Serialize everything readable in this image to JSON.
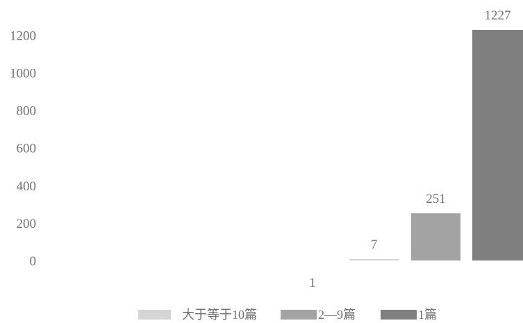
{
  "chart_data": {
    "type": "bar",
    "categories": [
      "1"
    ],
    "series": [
      {
        "name": "大于等于10篇",
        "values": [
          7
        ],
        "color": "#d4d4d4"
      },
      {
        "name": "2—9篇",
        "values": [
          251
        ],
        "color": "#a3a3a3"
      },
      {
        "name": "1篇",
        "values": [
          1227
        ],
        "color": "#7f7f7f"
      }
    ],
    "yticks": [
      0,
      200,
      400,
      600,
      800,
      1000,
      1200
    ],
    "ylim": [
      0,
      1227
    ],
    "title": "",
    "xlabel": "",
    "ylabel": "",
    "grid": false,
    "legend_position": "bottom"
  }
}
